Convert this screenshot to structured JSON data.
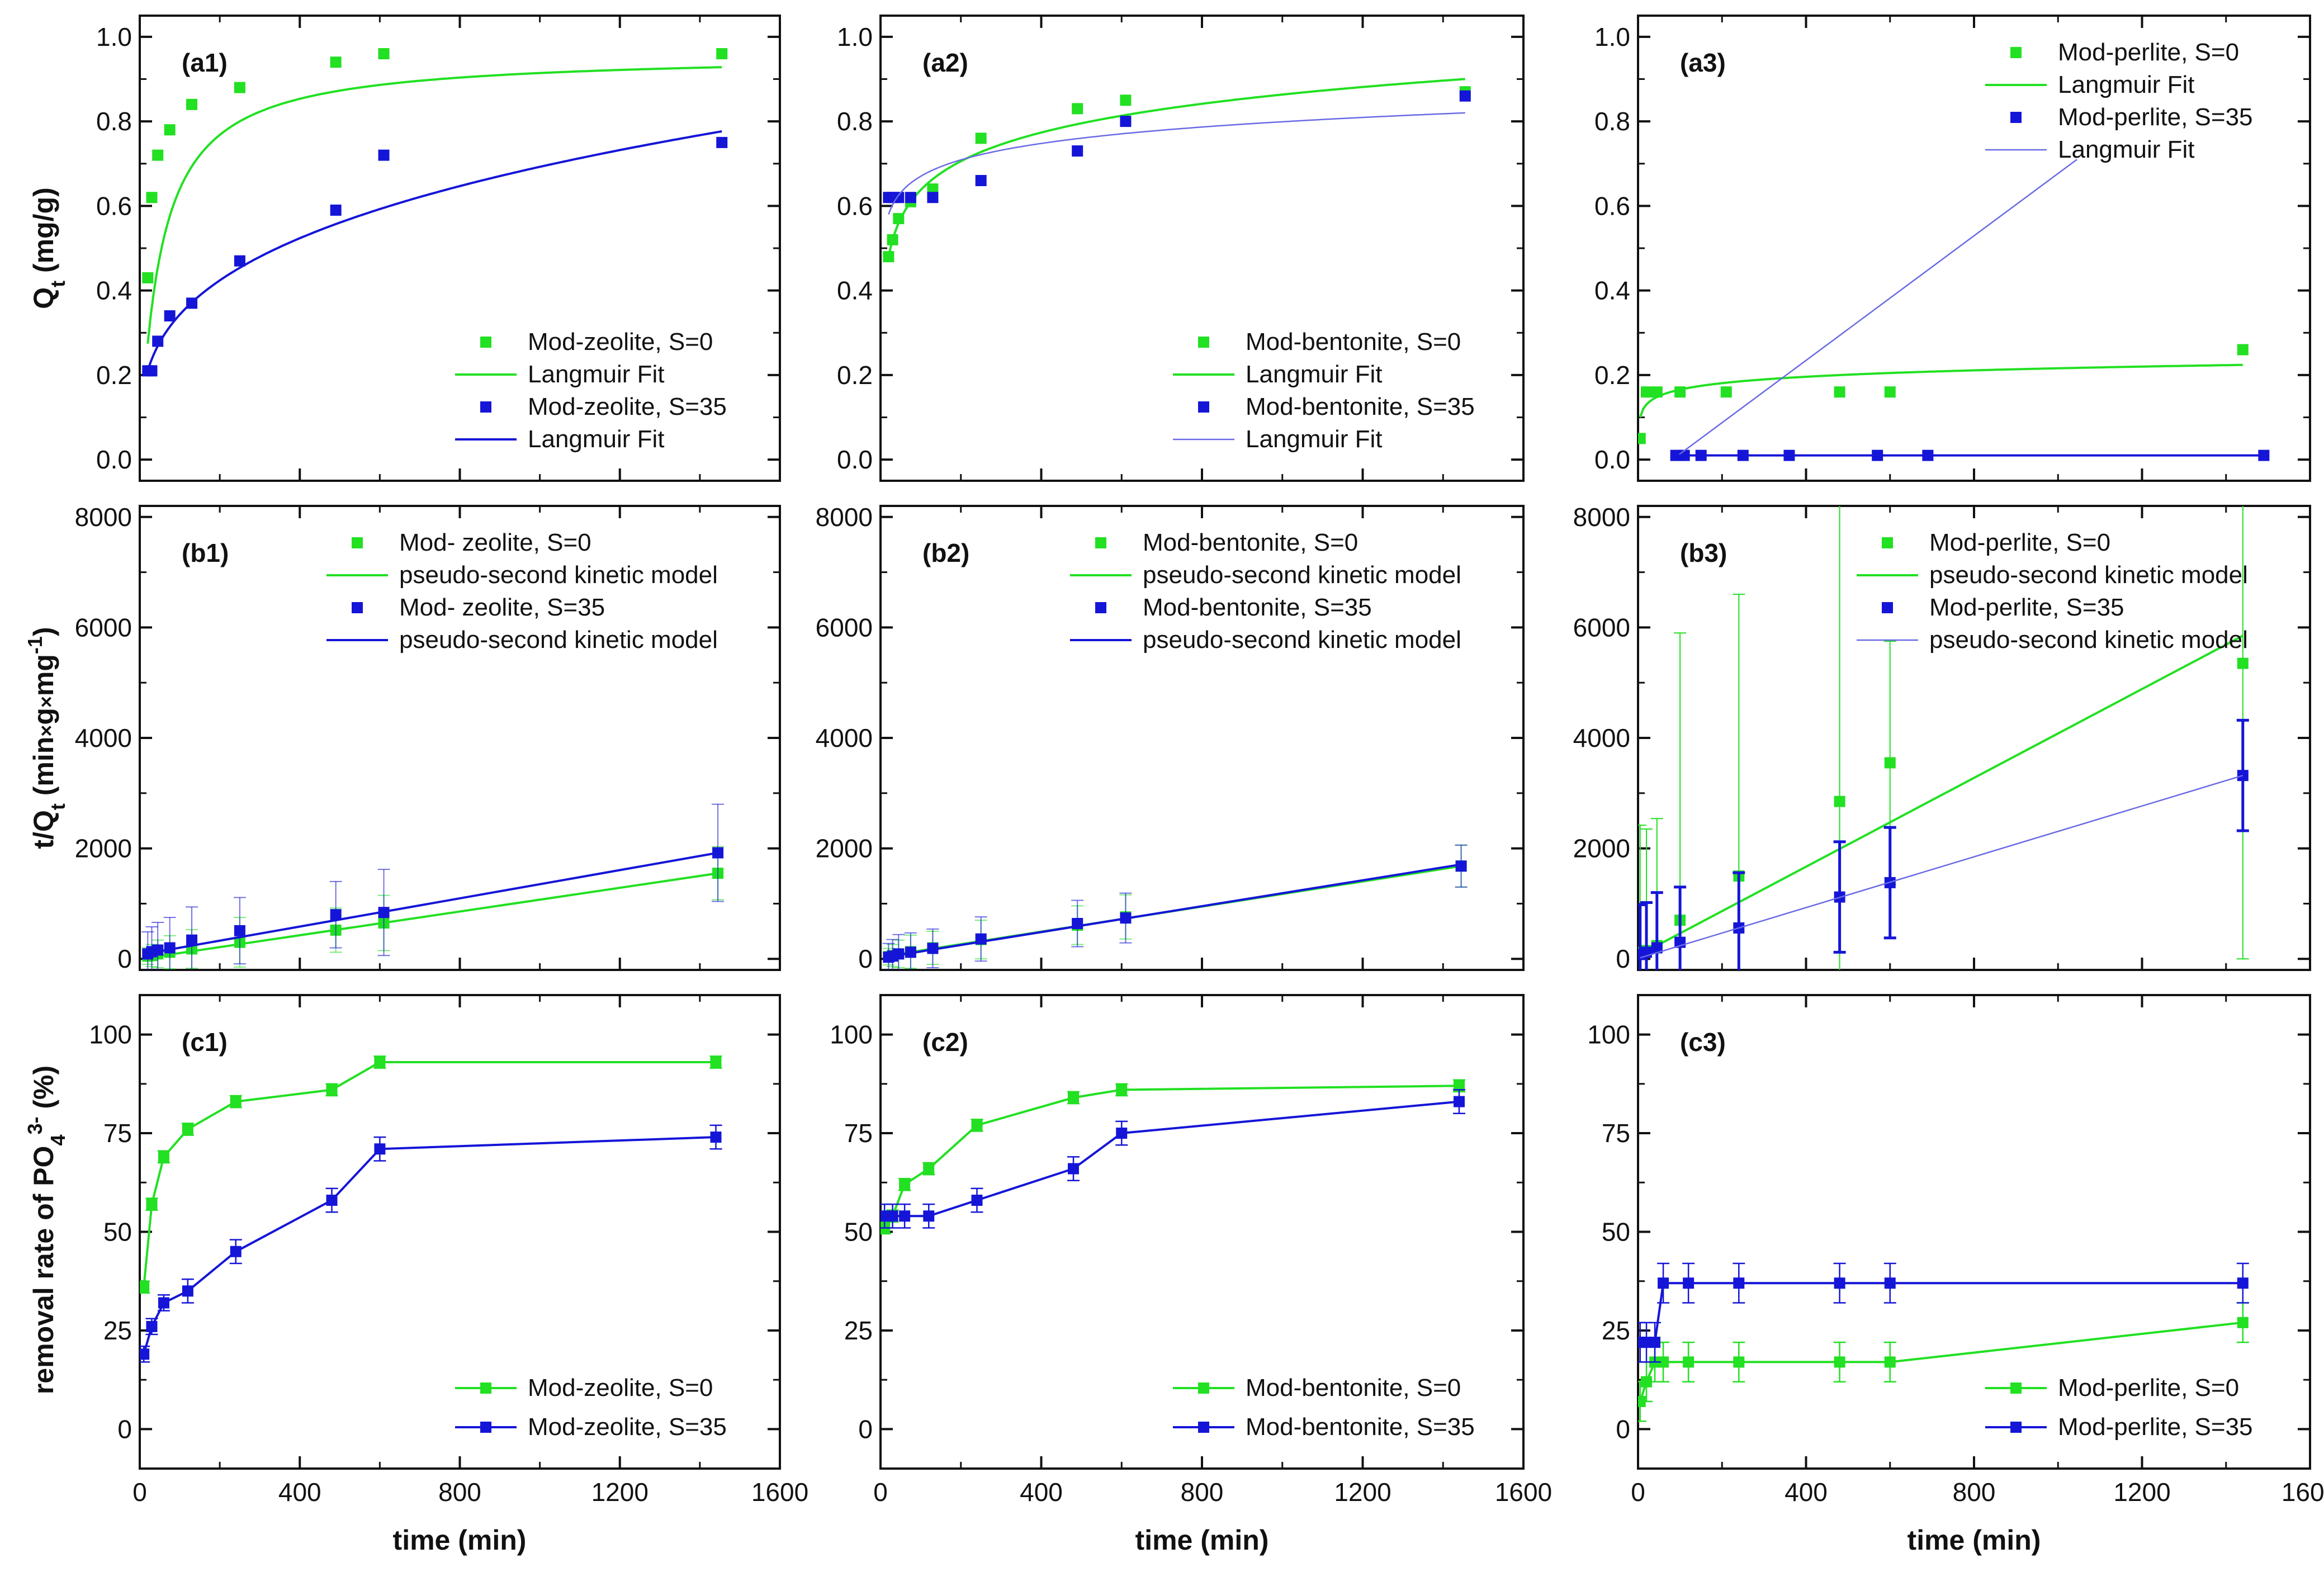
{
  "colors": {
    "green": "#22e022",
    "blue": "#1515d8",
    "blue_light": "#6a6ae6",
    "axis": "#111111"
  },
  "axes": {
    "x_label": "time (min)",
    "y_labels": {
      "a": {
        "pre": "Q",
        "sub": "t",
        "post": " (mg/g)"
      },
      "b": {
        "pre": "t/Q",
        "sub": "t",
        "mid": " (min",
        "times1": "×",
        "g": "g",
        "times2": "×",
        "mg": "mg",
        "sup": "-1",
        "post": ")"
      },
      "c": {
        "pre": "removal rate of PO",
        "sub": "4",
        "sup": "3-",
        "post": " (%)"
      }
    },
    "x_ticks": [
      "0",
      "400",
      "800",
      "1200",
      "1600"
    ]
  },
  "chart_data": [
    {
      "id": "a1",
      "type": "scatter",
      "label": "(a1)",
      "xlim": [
        0,
        1600
      ],
      "ylim": [
        -0.05,
        1.05
      ],
      "yticks": [
        0,
        0.2,
        0.4,
        0.6,
        0.8,
        1.0
      ],
      "ytick_labels": [
        "0.0",
        "0.2",
        "0.4",
        "0.6",
        "0.8",
        "1.0"
      ],
      "legend_pos": "lower-right",
      "series": [
        {
          "name": "Mod-zeolite, S=0",
          "color": "green",
          "kind": "points",
          "x": [
            20,
            30,
            45,
            75,
            130,
            250,
            490,
            610,
            1455
          ],
          "y": [
            0.43,
            0.62,
            0.72,
            0.78,
            0.84,
            0.88,
            0.94,
            0.96,
            0.96
          ]
        },
        {
          "name": "Langmuir Fit",
          "color": "green",
          "kind": "curve",
          "model": "langmuir",
          "p": [
            0.96,
            0.02
          ],
          "x0": 20,
          "x1": 1455
        },
        {
          "name": "Mod-zeolite, S=35",
          "color": "blue",
          "kind": "points",
          "x": [
            20,
            30,
            45,
            75,
            130,
            250,
            490,
            610,
            1455
          ],
          "y": [
            0.21,
            0.21,
            0.28,
            0.34,
            0.37,
            0.47,
            0.59,
            0.72,
            0.75
          ]
        },
        {
          "name": "Langmuir Fit",
          "color": "blue",
          "kind": "curve",
          "model": "pow",
          "p": [
            0.21,
            20,
            0.305
          ],
          "x0": 20,
          "x1": 1455
        }
      ]
    },
    {
      "id": "a2",
      "type": "scatter",
      "label": "(a2)",
      "xlim": [
        0,
        1600
      ],
      "ylim": [
        -0.05,
        1.05
      ],
      "yticks": [
        0,
        0.2,
        0.4,
        0.6,
        0.8,
        1.0
      ],
      "ytick_labels": [
        "0.0",
        "0.2",
        "0.4",
        "0.6",
        "0.8",
        "1.0"
      ],
      "legend_pos": "lower-right",
      "series": [
        {
          "name": "Mod-bentonite, S=0",
          "color": "green",
          "kind": "points",
          "x": [
            20,
            30,
            45,
            75,
            130,
            250,
            490,
            610,
            1455
          ],
          "y": [
            0.48,
            0.52,
            0.57,
            0.61,
            0.64,
            0.76,
            0.83,
            0.85,
            0.87
          ]
        },
        {
          "name": "Langmuir Fit",
          "color": "green",
          "kind": "curve",
          "model": "log",
          "p": [
            0.48,
            20,
            0.098
          ],
          "x0": 20,
          "x1": 1455
        },
        {
          "name": "Mod-bentonite, S=35",
          "color": "blue",
          "kind": "points",
          "x": [
            20,
            30,
            45,
            75,
            130,
            250,
            490,
            610,
            1455
          ],
          "y": [
            0.62,
            0.62,
            0.62,
            0.62,
            0.62,
            0.66,
            0.73,
            0.8,
            0.86
          ]
        },
        {
          "name": "Langmuir Fit",
          "color": "blue_light",
          "kind": "curve",
          "model": "log",
          "p": [
            0.58,
            20,
            0.056
          ],
          "x0": 20,
          "x1": 1455
        }
      ]
    },
    {
      "id": "a3",
      "type": "scatter",
      "label": "(a3)",
      "xlim": [
        0,
        1600
      ],
      "ylim": [
        -0.05,
        1.05
      ],
      "yticks": [
        0,
        0.2,
        0.4,
        0.6,
        0.8,
        1.0
      ],
      "ytick_labels": [
        "0.0",
        "0.2",
        "0.4",
        "0.6",
        "0.8",
        "1.0"
      ],
      "legend_pos": "top-right",
      "series": [
        {
          "name": "Mod-perlite, S=0",
          "color": "green",
          "kind": "points",
          "x": [
            5,
            20,
            45,
            100,
            210,
            480,
            600,
            1440
          ],
          "y": [
            0.05,
            0.16,
            0.16,
            0.16,
            0.16,
            0.16,
            0.16,
            0.26
          ]
        },
        {
          "name": "Langmuir Fit",
          "color": "green",
          "kind": "curve",
          "model": "log",
          "p": [
            0.1,
            5,
            0.0219
          ],
          "x0": 5,
          "x1": 1440
        },
        {
          "name": "Mod-perlite, S=35",
          "color": "blue",
          "kind": "points",
          "x": [
            90,
            110,
            150,
            250,
            360,
            570,
            690,
            1490
          ],
          "y": [
            0.01,
            0.01,
            0.01,
            0.01,
            0.01,
            0.01,
            0.01,
            0.01
          ]
        },
        {
          "name": "Langmuir Fit",
          "color": "blue_light",
          "kind": "polyline",
          "x": [
            95,
            1045
          ],
          "y": [
            0.01,
            0.71
          ]
        },
        {
          "name": "",
          "color": "blue",
          "kind": "polyline",
          "x": [
            90,
            1490
          ],
          "y": [
            0.01,
            0.01
          ]
        }
      ]
    },
    {
      "id": "b1",
      "type": "scatter",
      "label": "(b1)",
      "xlim": [
        0,
        1600
      ],
      "ylim": [
        -200,
        8200
      ],
      "yticks": [
        0,
        2000,
        4000,
        6000,
        8000
      ],
      "ytick_labels": [
        "0",
        "2000",
        "4000",
        "6000",
        "8000"
      ],
      "legend_pos": "top-right",
      "series": [
        {
          "name": "Mod- zeolite, S=0",
          "color": "green",
          "kind": "points",
          "x": [
            20,
            30,
            45,
            75,
            130,
            250,
            490,
            610,
            1445
          ],
          "y": [
            50,
            60,
            90,
            120,
            180,
            300,
            520,
            650,
            1550
          ],
          "err": [
            150,
            200,
            250,
            300,
            350,
            450,
            400,
            500,
            480
          ]
        },
        {
          "name": "pseudo-second kinetic model",
          "color": "green",
          "kind": "polyline",
          "x": [
            20,
            1445
          ],
          "y": [
            20,
            1550
          ]
        },
        {
          "name": "Mod- zeolite, S=35",
          "color": "blue",
          "kind": "points",
          "x": [
            20,
            30,
            45,
            75,
            130,
            250,
            490,
            610,
            1445
          ],
          "y": [
            90,
            130,
            160,
            200,
            340,
            510,
            800,
            840,
            1920
          ],
          "err": [
            400,
            450,
            500,
            550,
            600,
            600,
            600,
            780,
            880
          ]
        },
        {
          "name": "pseudo-second kinetic model",
          "color": "blue",
          "kind": "polyline",
          "x": [
            20,
            1445
          ],
          "y": [
            100,
            1920
          ]
        }
      ]
    },
    {
      "id": "b2",
      "type": "scatter",
      "label": "(b2)",
      "xlim": [
        0,
        1600
      ],
      "ylim": [
        -200,
        8200
      ],
      "yticks": [
        0,
        2000,
        4000,
        6000,
        8000
      ],
      "ytick_labels": [
        "0",
        "2000",
        "4000",
        "6000",
        "8000"
      ],
      "legend_pos": "top-right",
      "series": [
        {
          "name": "Mod-bentonite, S=0",
          "color": "green",
          "kind": "points",
          "x": [
            20,
            30,
            45,
            75,
            130,
            250,
            490,
            610,
            1445
          ],
          "y": [
            40,
            60,
            90,
            130,
            200,
            350,
            610,
            760,
            1680
          ],
          "err": [
            150,
            200,
            250,
            300,
            300,
            350,
            350,
            400,
            380
          ]
        },
        {
          "name": "pseudo-second kinetic model",
          "color": "green",
          "kind": "polyline",
          "x": [
            20,
            1445
          ],
          "y": [
            60,
            1680
          ]
        },
        {
          "name": "Mod-bentonite, S=35",
          "color": "blue",
          "kind": "points",
          "x": [
            20,
            30,
            45,
            75,
            130,
            250,
            490,
            610,
            1445
          ],
          "y": [
            30,
            50,
            90,
            120,
            190,
            360,
            640,
            740,
            1680
          ],
          "err": [
            250,
            300,
            350,
            350,
            350,
            400,
            420,
            450,
            380
          ]
        },
        {
          "name": "pseudo-second kinetic model",
          "color": "blue",
          "kind": "polyline",
          "x": [
            20,
            1445
          ],
          "y": [
            40,
            1710
          ]
        }
      ]
    },
    {
      "id": "b3",
      "type": "scatter",
      "label": "(b3)",
      "xlim": [
        0,
        1600
      ],
      "ylim": [
        -200,
        8200
      ],
      "yticks": [
        0,
        2000,
        4000,
        6000,
        8000
      ],
      "ytick_labels": [
        "0",
        "2000",
        "4000",
        "6000",
        "8000"
      ],
      "legend_pos": "top-right",
      "series": [
        {
          "name": "Mod-perlite, S=0",
          "color": "green",
          "kind": "points",
          "x": [
            5,
            20,
            45,
            100,
            240,
            480,
            600,
            1440
          ],
          "y": [
            120,
            150,
            240,
            700,
            1500,
            2850,
            3550,
            5350
          ],
          "err": [
            2300,
            2200,
            2300,
            5200,
            5100,
            5500,
            2200,
            5350
          ]
        },
        {
          "name": "pseudo-second kinetic model",
          "color": "green",
          "kind": "polyline",
          "x": [
            5,
            1440
          ],
          "y": [
            80,
            5850
          ]
        },
        {
          "name": "Mod-perlite, S=35",
          "color": "blue",
          "kind": "points",
          "x": [
            5,
            20,
            45,
            100,
            240,
            480,
            600,
            1440
          ],
          "y": [
            80,
            120,
            200,
            300,
            560,
            1120,
            1380,
            3320
          ],
          "err": [
            900,
            900,
            1000,
            1000,
            1000,
            1000,
            1000,
            1000
          ]
        },
        {
          "name": "pseudo-second kinetic model",
          "color": "blue_light",
          "kind": "polyline",
          "x": [
            5,
            1440
          ],
          "y": [
            20,
            3320
          ]
        }
      ]
    },
    {
      "id": "c1",
      "type": "line",
      "label": "(c1)",
      "xlim": [
        0,
        1600
      ],
      "ylim": [
        -10,
        110
      ],
      "yticks": [
        0,
        25,
        50,
        75,
        100
      ],
      "ytick_labels": [
        "0",
        "25",
        "50",
        "75",
        "100"
      ],
      "legend_pos": "lower-right",
      "series": [
        {
          "name": "Mod-zeolite, S=0",
          "color": "green",
          "kind": "line-points",
          "x": [
            10,
            30,
            60,
            120,
            240,
            480,
            600,
            1440
          ],
          "y": [
            36,
            57,
            69,
            76,
            83,
            86,
            93,
            93
          ],
          "err": [
            1.5,
            1.5,
            1.5,
            1.5,
            1.5,
            1.5,
            1.5,
            1.5
          ]
        },
        {
          "name": "Mod-zeolite, S=35",
          "color": "blue",
          "kind": "line-points",
          "x": [
            10,
            30,
            60,
            120,
            240,
            480,
            600,
            1440
          ],
          "y": [
            19,
            26,
            32,
            35,
            45,
            58,
            71,
            74
          ],
          "err": [
            2,
            2,
            2,
            3,
            3,
            3,
            3,
            3
          ]
        }
      ]
    },
    {
      "id": "c2",
      "type": "line",
      "label": "(c2)",
      "xlim": [
        0,
        1600
      ],
      "ylim": [
        -10,
        110
      ],
      "yticks": [
        0,
        25,
        50,
        75,
        100
      ],
      "ytick_labels": [
        "0",
        "25",
        "50",
        "75",
        "100"
      ],
      "legend_pos": "lower-right",
      "series": [
        {
          "name": "Mod-bentonite, S=0",
          "color": "green",
          "kind": "line-points",
          "x": [
            10,
            30,
            60,
            120,
            240,
            480,
            600,
            1440
          ],
          "y": [
            51,
            54,
            62,
            66,
            77,
            84,
            86,
            87
          ],
          "err": [
            1.5,
            1.5,
            1.5,
            1.5,
            1.5,
            1.5,
            1.5,
            1.5
          ]
        },
        {
          "name": "Mod-bentonite, S=35",
          "color": "blue",
          "kind": "line-points",
          "x": [
            10,
            30,
            60,
            120,
            240,
            480,
            600,
            1440
          ],
          "y": [
            54,
            54,
            54,
            54,
            58,
            66,
            75,
            83
          ],
          "err": [
            3,
            3,
            3,
            3,
            3,
            3,
            3,
            3
          ]
        }
      ]
    },
    {
      "id": "c3",
      "type": "line",
      "label": "(c3)",
      "xlim": [
        0,
        1600
      ],
      "ylim": [
        -10,
        110
      ],
      "yticks": [
        0,
        25,
        50,
        75,
        100
      ],
      "ytick_labels": [
        "0",
        "25",
        "50",
        "75",
        "100"
      ],
      "legend_pos": "lower-right",
      "series": [
        {
          "name": "Mod-perlite, S=0",
          "color": "green",
          "kind": "line-points",
          "x": [
            5,
            20,
            40,
            60,
            120,
            240,
            480,
            600,
            1440
          ],
          "y": [
            7,
            12,
            17,
            17,
            17,
            17,
            17,
            17,
            27
          ],
          "err": [
            5,
            5,
            5,
            5,
            5,
            5,
            5,
            5,
            5
          ]
        },
        {
          "name": "Mod-perlite, S=35",
          "color": "blue",
          "kind": "line-points",
          "x": [
            5,
            20,
            40,
            60,
            120,
            240,
            480,
            600,
            1440
          ],
          "y": [
            22,
            22,
            22,
            37,
            37,
            37,
            37,
            37,
            37
          ],
          "err": [
            5,
            5,
            5,
            5,
            5,
            5,
            5,
            5,
            5
          ]
        }
      ]
    }
  ]
}
